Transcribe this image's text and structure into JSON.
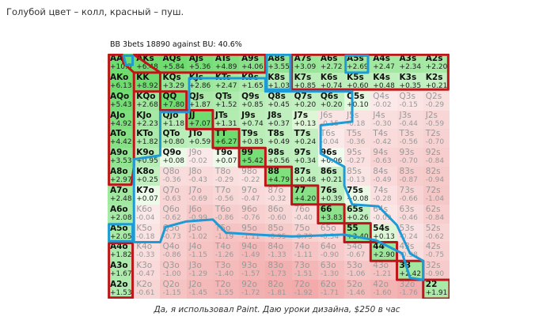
{
  "post": {
    "intro_text": "Голубой цвет – колл, красный – пуш.",
    "caption": "Да, я использовал Paint. Даю уроки дизайна, $250 в час"
  },
  "chart_data": {
    "type": "heatmap",
    "title": "BB 3bets 18890 against BU: 40.6%",
    "colors": {
      "positive": "#6fdc6f",
      "zero": "#ffffff",
      "negative": "#f2a7a7",
      "call_outline": "#1e9ad6",
      "push_outline": "#c0141a"
    },
    "rows": [
      [
        [
          "AA",
          "+10.5"
        ],
        [
          "AKs",
          "+6.48"
        ],
        [
          "AQs",
          "+5.84"
        ],
        [
          "AJs",
          "+5.36"
        ],
        [
          "ATs",
          "+4.89"
        ],
        [
          "A9s",
          "+4.06"
        ],
        [
          "A8s",
          "+3.55"
        ],
        [
          "A7s",
          "+3.09"
        ],
        [
          "A6s",
          "+2.72"
        ],
        [
          "A5s",
          "+2.69"
        ],
        [
          "A4s",
          "+2.47"
        ],
        [
          "A3s",
          "+2.34"
        ],
        [
          "A2s",
          "+2.20"
        ]
      ],
      [
        [
          "AKo",
          "+6.13"
        ],
        [
          "KK",
          "+8.92"
        ],
        [
          "KQs",
          "+3.29"
        ],
        [
          "KJs",
          "+2.86"
        ],
        [
          "KTs",
          "+2.47"
        ],
        [
          "K9s",
          "+1.65"
        ],
        [
          "K8s",
          "+1.03"
        ],
        [
          "K7s",
          "+0.85"
        ],
        [
          "K6s",
          "+0.74"
        ],
        [
          "K5s",
          "+0.60"
        ],
        [
          "K4s",
          "+0.48"
        ],
        [
          "K3s",
          "+0.35"
        ],
        [
          "K2s",
          "+0.21"
        ]
      ],
      [
        [
          "AQo",
          "+5.43"
        ],
        [
          "KQo",
          "+2.68"
        ],
        [
          "QQ",
          "+7.80"
        ],
        [
          "QJs",
          "+1.87"
        ],
        [
          "QTs",
          "+1.52"
        ],
        [
          "Q9s",
          "+0.85"
        ],
        [
          "Q8s",
          "+0.45"
        ],
        [
          "Q7s",
          "+0.20"
        ],
        [
          "Q6s",
          "+0.20"
        ],
        [
          "Q5s",
          "+0.10"
        ],
        [
          "Q4s",
          "-0.02"
        ],
        [
          "Q3s",
          "-0.15"
        ],
        [
          "Q2s",
          "-0.29"
        ]
      ],
      [
        [
          "AJo",
          "+4.92"
        ],
        [
          "KJo",
          "+2.23"
        ],
        [
          "QJo",
          "+1.18"
        ],
        [
          "JJ",
          "+7.07"
        ],
        [
          "JTs",
          "+1.31"
        ],
        [
          "J9s",
          "+0.74"
        ],
        [
          "J8s",
          "+0.37"
        ],
        [
          "J7s",
          "+0.13"
        ],
        [
          "J6s",
          "-0.15"
        ],
        [
          "J5s",
          "-0.18"
        ],
        [
          "J4s",
          "-0.30"
        ],
        [
          "J3s",
          "-0.44"
        ],
        [
          "J2s",
          "-0.59"
        ]
      ],
      [
        [
          "ATo",
          "+4.42"
        ],
        [
          "KTo",
          "+1.82"
        ],
        [
          "QTo",
          "+0.80"
        ],
        [
          "JTo",
          "+0.59"
        ],
        [
          "TT",
          "+6.27"
        ],
        [
          "T9s",
          "+0.83"
        ],
        [
          "T8s",
          "+0.49"
        ],
        [
          "T7s",
          "+0.24"
        ],
        [
          "T6s",
          "-0.04"
        ],
        [
          "T5s",
          "-0.36"
        ],
        [
          "T4s",
          "-0.42"
        ],
        [
          "T3s",
          "-0.56"
        ],
        [
          "T2s",
          "-0.70"
        ]
      ],
      [
        [
          "A9o",
          "+3.53"
        ],
        [
          "K9o",
          "+0.95"
        ],
        [
          "Q9o",
          "+0.08"
        ],
        [
          "J9o",
          "-0.02"
        ],
        [
          "T9o",
          "+0.07"
        ],
        [
          "99",
          "+5.42"
        ],
        [
          "98s",
          "+0.56"
        ],
        [
          "97s",
          "+0.34"
        ],
        [
          "96s",
          "+0.06"
        ],
        [
          "95s",
          "-0.27"
        ],
        [
          "94s",
          "-0.63"
        ],
        [
          "93s",
          "-0.70"
        ],
        [
          "92s",
          "-0.84"
        ]
      ],
      [
        [
          "A8o",
          "+2.97"
        ],
        [
          "K8o",
          "+0.25"
        ],
        [
          "Q8o",
          "-0.36"
        ],
        [
          "J8o",
          "-0.43"
        ],
        [
          "T8o",
          "-0.29"
        ],
        [
          "98o",
          "-0.22"
        ],
        [
          "88",
          "+4.79"
        ],
        [
          "87s",
          "+0.48"
        ],
        [
          "86s",
          "+0.21"
        ],
        [
          "85s",
          "-0.13"
        ],
        [
          "84s",
          "-0.49"
        ],
        [
          "83s",
          "-0.87"
        ],
        [
          "82s",
          "-0.94"
        ]
      ],
      [
        [
          "A7o",
          "+2.48"
        ],
        [
          "K7o",
          "+0.07"
        ],
        [
          "Q7o",
          "-0.63"
        ],
        [
          "J7o",
          "-0.69"
        ],
        [
          "T7o",
          "-0.56"
        ],
        [
          "97o",
          "-0.47"
        ],
        [
          "87o",
          "-0.32"
        ],
        [
          "77",
          "+4.20"
        ],
        [
          "76s",
          "+0.39"
        ],
        [
          "75s",
          "+0.08"
        ],
        [
          "74s",
          "-0.28"
        ],
        [
          "73s",
          "-0.66"
        ],
        [
          "72s",
          "-1.04"
        ]
      ],
      [
        [
          "A6o",
          "+2.08"
        ],
        [
          "K6o",
          "-0.04"
        ],
        [
          "Q6o",
          "-0.62"
        ],
        [
          "J6o",
          "-0.99"
        ],
        [
          "T6o",
          "-0.86"
        ],
        [
          "96o",
          "-0.76"
        ],
        [
          "86o",
          "-0.60"
        ],
        [
          "76o",
          "-0.40"
        ],
        [
          "66",
          "+3.83"
        ],
        [
          "65s",
          "+0.26"
        ],
        [
          "64s",
          "-0.09"
        ],
        [
          "63s",
          "-0.46"
        ],
        [
          "62s",
          "-0.84"
        ]
      ],
      [
        [
          "A5o",
          "+2.05"
        ],
        [
          "K5o",
          "-0.18"
        ],
        [
          "Q5o",
          "-0.73"
        ],
        [
          "J5o",
          "-1.02"
        ],
        [
          "T5o",
          "-1.19"
        ],
        [
          "95o",
          "-1.11"
        ],
        [
          "85o",
          "-0.95"
        ],
        [
          "75o",
          "-0.73"
        ],
        [
          "65o",
          "-0.54"
        ],
        [
          "55",
          "+3.40"
        ],
        [
          "54s",
          "+0.13"
        ],
        [
          "53s",
          "-0.24"
        ],
        [
          "52s",
          "-0.62"
        ]
      ],
      [
        [
          "A4o",
          "+1.82"
        ],
        [
          "K4o",
          "-0.33"
        ],
        [
          "Q4o",
          "-0.86"
        ],
        [
          "J4o",
          "-1.15"
        ],
        [
          "T4o",
          "-1.26"
        ],
        [
          "94o",
          "-1.49"
        ],
        [
          "84o",
          "-1.33"
        ],
        [
          "74o",
          "-1.11"
        ],
        [
          "64o",
          "-0.90"
        ],
        [
          "54o",
          "-0.67"
        ],
        [
          "44",
          "+2.90"
        ],
        [
          "43s",
          "-0.38"
        ],
        [
          "42s",
          "-0.75"
        ]
      ],
      [
        [
          "A3o",
          "+1.67"
        ],
        [
          "K3o",
          "-0.47"
        ],
        [
          "Q3o",
          "-1.00"
        ],
        [
          "J3o",
          "-1.29"
        ],
        [
          "T3o",
          "-1.40"
        ],
        [
          "93o",
          "-1.57"
        ],
        [
          "83o",
          "-1.73"
        ],
        [
          "73o",
          "-1.51"
        ],
        [
          "63o",
          "-1.30"
        ],
        [
          "53o",
          "-1.06"
        ],
        [
          "43o",
          "-1.21"
        ],
        [
          "33",
          "+2.42"
        ],
        [
          "32s",
          "-0.90"
        ]
      ],
      [
        [
          "A2o",
          "+1.53"
        ],
        [
          "K2o",
          "-0.61"
        ],
        [
          "Q2o",
          "-1.15"
        ],
        [
          "J2o",
          "-1.45"
        ],
        [
          "T2o",
          "-1.55"
        ],
        [
          "92o",
          "-1.72"
        ],
        [
          "82o",
          "-1.81"
        ],
        [
          "72o",
          "-1.92"
        ],
        [
          "62o",
          "-1.71"
        ],
        [
          "52o",
          "-1.46"
        ],
        [
          "42o",
          "-1.60"
        ],
        [
          "32o",
          "-1.76"
        ],
        [
          "22",
          "+1.91"
        ]
      ]
    ]
  }
}
